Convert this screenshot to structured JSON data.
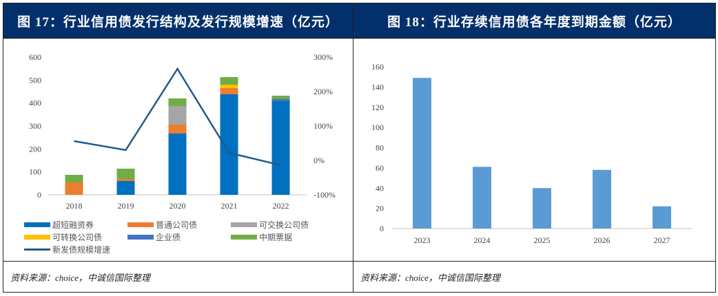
{
  "panels": [
    {
      "title": "图 17：行业信用债发行结构及发行规模增速（亿元）",
      "source": "资料来源：choice，中诚信国际整理"
    },
    {
      "title": "图 18：行业存续信用债各年度到期金额（亿元）",
      "source": "资料来源：choice，中诚信国际整理"
    }
  ],
  "chart_data": [
    {
      "type": "bar",
      "stacked": true,
      "title": "行业信用债发行结构及发行规模增速（亿元）",
      "categories": [
        "2018",
        "2019",
        "2020",
        "2021",
        "2022"
      ],
      "ylim": [
        0,
        600
      ],
      "yticks": [
        "0",
        "100",
        "200",
        "300",
        "400",
        "500",
        "600"
      ],
      "y2lim": [
        -100,
        300
      ],
      "y2ticks": [
        "-100%",
        "0%",
        "100%",
        "200%",
        "300%"
      ],
      "grid": false,
      "legend_position": "bottom",
      "series": [
        {
          "name": "超短融资券",
          "color": "#0070c0",
          "values": [
            0,
            60,
            267,
            438,
            408
          ]
        },
        {
          "name": "普通公司债",
          "color": "#ed7d31",
          "values": [
            54,
            9,
            39,
            27,
            0
          ]
        },
        {
          "name": "可交换公司债",
          "color": "#a5a5a5",
          "values": [
            0,
            0,
            81,
            0,
            0
          ]
        },
        {
          "name": "可转换公司债",
          "color": "#ffc000",
          "values": [
            0,
            0,
            0,
            15,
            0
          ]
        },
        {
          "name": "企业债",
          "color": "#4472c4",
          "values": [
            0,
            0,
            0,
            0,
            9
          ]
        },
        {
          "name": "中期票据",
          "color": "#70ad47",
          "values": [
            33,
            45,
            33,
            33,
            15
          ]
        }
      ],
      "line_series": {
        "name": "新发债规模增速",
        "color": "#1f5b8e",
        "axis": "right",
        "values": [
          56,
          30,
          266,
          22,
          -14
        ]
      }
    },
    {
      "type": "bar",
      "title": "行业存续信用债各年度到期金额（亿元）",
      "categories": [
        "2023",
        "2024",
        "2025",
        "2026",
        "2027"
      ],
      "values": [
        149,
        61,
        40,
        58,
        22
      ],
      "color": "#5b9bd5",
      "ylim": [
        0,
        160
      ],
      "yticks": [
        "0",
        "20",
        "40",
        "60",
        "80",
        "100",
        "120",
        "140",
        "160"
      ],
      "grid": false,
      "xlabel": "",
      "ylabel": ""
    }
  ]
}
